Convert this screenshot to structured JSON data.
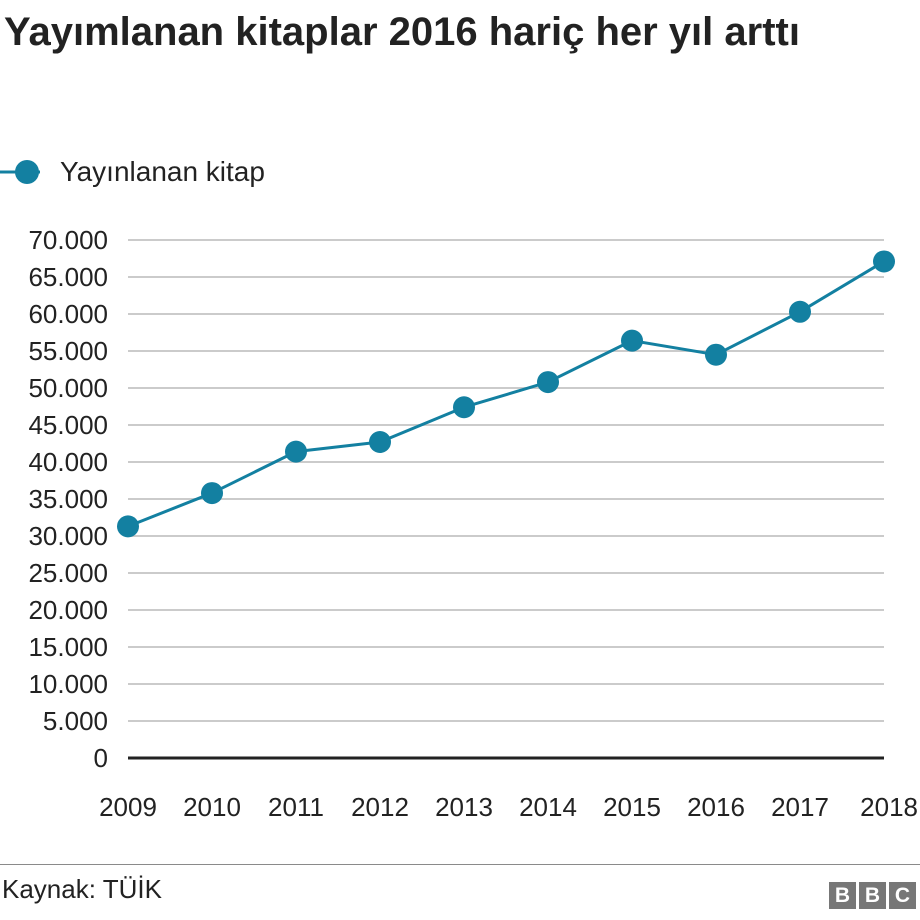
{
  "title": "Yayımlanan kitaplar 2016 hariç her yıl arttı",
  "source": "Kaynak: TÜİK",
  "logo": [
    "B",
    "B",
    "C"
  ],
  "chart_data": {
    "type": "line",
    "title": "Yayımlanan kitaplar 2016 hariç her yıl arttı",
    "x": [
      "2009",
      "2010",
      "2011",
      "2012",
      "2013",
      "2014",
      "2015",
      "2016",
      "2017",
      "2018"
    ],
    "series": [
      {
        "name": "Yayınlanan kitap",
        "values": [
          31300,
          35800,
          41400,
          42700,
          47400,
          50800,
          56400,
          54500,
          60300,
          67100
        ]
      }
    ],
    "y_ticks": [
      0,
      5000,
      10000,
      15000,
      20000,
      25000,
      30000,
      35000,
      40000,
      45000,
      50000,
      55000,
      60000,
      65000,
      70000
    ],
    "y_tick_labels": [
      "0",
      "5.000",
      "10.000",
      "15.000",
      "20.000",
      "25.000",
      "30.000",
      "35.000",
      "40.000",
      "45.000",
      "50.000",
      "55.000",
      "60.000",
      "65.000",
      "70.000"
    ],
    "ylim": [
      0,
      70000
    ],
    "grid": true,
    "legend_position": "top-left",
    "color": "#1380A1",
    "grid_color": "#cbcbcb",
    "axis_color": "#222222"
  }
}
